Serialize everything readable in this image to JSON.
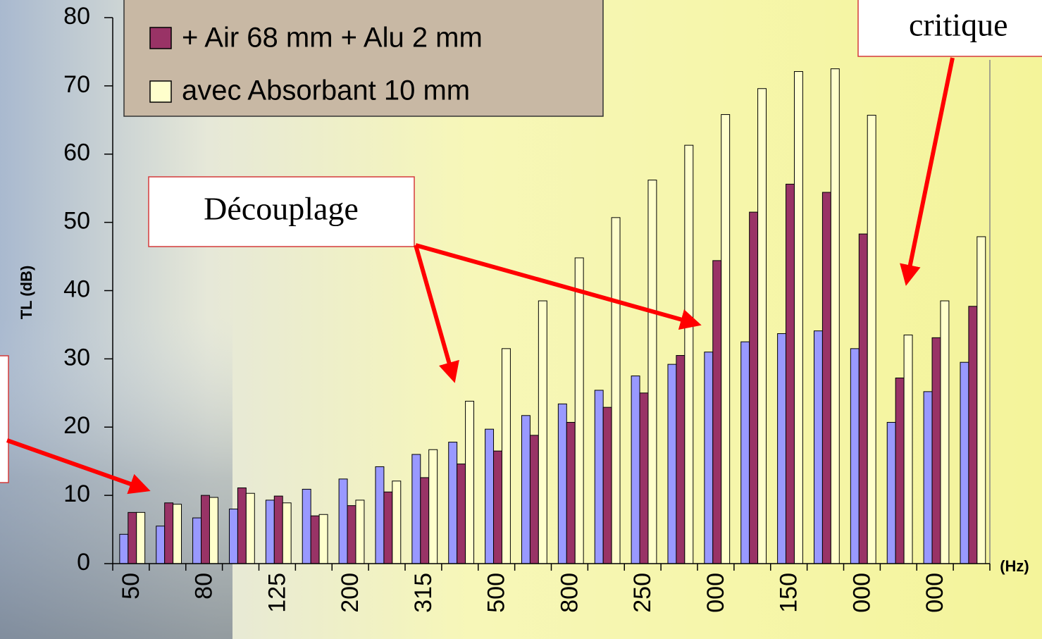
{
  "chart_data": {
    "type": "bar",
    "y_label": "TL (dB)",
    "x_label": "(Hz)",
    "annotations": [
      "critique",
      "Découplage"
    ],
    "categories": [
      "50",
      null,
      "80",
      null,
      "125",
      null,
      "200",
      null,
      "315",
      null,
      "500",
      null,
      "800",
      null,
      "250",
      null,
      "000",
      null,
      "150",
      null,
      "000",
      null,
      "000",
      null
    ],
    "series": [
      {
        "color": "#9999ff",
        "values": [
          4.3,
          5.5,
          6.7,
          8,
          9.3,
          10.9,
          12.4,
          14.2,
          16,
          17.8,
          19.7,
          21.7,
          23.4,
          25.4,
          27.5,
          29.2,
          31,
          32.5,
          33.7,
          34.1,
          31.5,
          20.7,
          25.2,
          29.5
        ]
      },
      {
        "name": "+ Air 68 mm + Alu 2 mm",
        "color": "#993366",
        "values": [
          7.5,
          8.9,
          10,
          11.1,
          9.9,
          7,
          8.5,
          10.5,
          12.6,
          14.6,
          16.5,
          18.8,
          20.7,
          22.9,
          25,
          30.5,
          44.4,
          51.5,
          55.6,
          54.4,
          48.3,
          27.2,
          33.1,
          37.7
        ]
      },
      {
        "name": "avec Absorbant 10 mm",
        "color": "#ffffcc",
        "values": [
          7.5,
          8.7,
          9.7,
          10.3,
          8.9,
          7.2,
          9.3,
          12.1,
          16.7,
          23.8,
          31.5,
          38.5,
          44.8,
          50.7,
          56.2,
          61.3,
          65.8,
          69.6,
          72.1,
          72.5,
          65.7,
          33.5,
          38.5,
          47.9
        ]
      }
    ],
    "ylim": [
      0,
      80
    ],
    "yticks": [
      0,
      10,
      20,
      30,
      40,
      50,
      60,
      70,
      80
    ]
  }
}
